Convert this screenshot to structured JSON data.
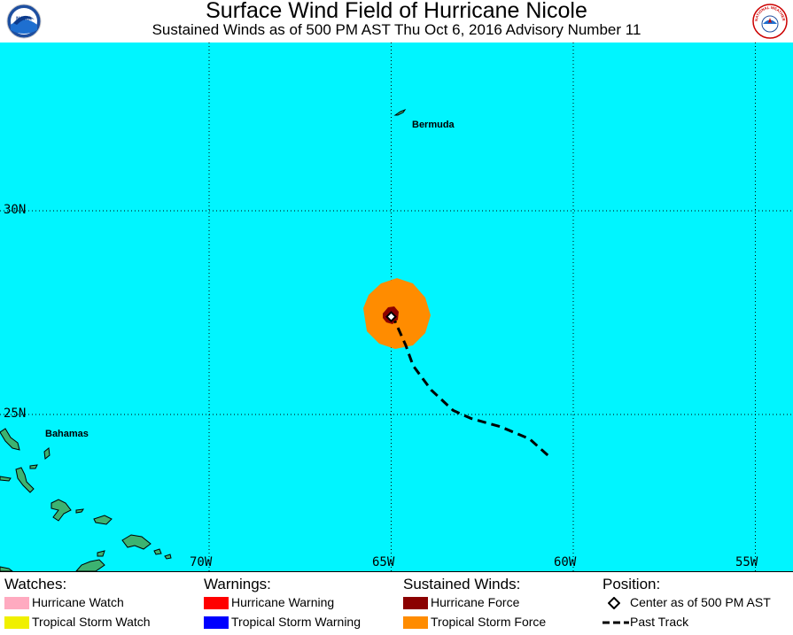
{
  "header": {
    "title": "Surface Wind Field of Hurricane Nicole",
    "subtitle": "Sustained Winds as of 500 PM AST Thu Oct 6, 2016   Advisory Number 11",
    "noaa_logo_text": "NOAA",
    "nws_logo_text": "NATIONAL WEATHER SERVICE"
  },
  "map": {
    "places": {
      "bermuda": "Bermuda",
      "bahamas": "Bahamas"
    },
    "latitude_labels": [
      "30N",
      "25N"
    ],
    "longitude_labels": [
      "70W",
      "65W",
      "60W",
      "55W"
    ],
    "gridlines": true,
    "colors": {
      "ocean": "#00f5ff",
      "land": "#3cb371",
      "tropical_storm_force": "#ff8c00",
      "hurricane_force": "#8b0000"
    }
  },
  "storm": {
    "center": {
      "lon": -65.0,
      "lat": 27.4
    },
    "past_track": [
      {
        "lon": -60.7,
        "lat": 24.0
      },
      {
        "lon": -61.2,
        "lat": 24.4
      },
      {
        "lon": -62.0,
        "lat": 24.7
      },
      {
        "lon": -62.8,
        "lat": 24.9
      },
      {
        "lon": -63.3,
        "lat": 25.1
      },
      {
        "lon": -63.9,
        "lat": 25.6
      },
      {
        "lon": -64.4,
        "lat": 26.2
      },
      {
        "lon": -64.6,
        "lat": 26.7
      },
      {
        "lon": -64.9,
        "lat": 27.3
      }
    ]
  },
  "legend": {
    "watches": {
      "heading": "Watches:",
      "items": [
        {
          "label": "Hurricane Watch",
          "color": "#ffaac0"
        },
        {
          "label": "Tropical Storm Watch",
          "color": "#f0f000"
        }
      ]
    },
    "warnings": {
      "heading": "Warnings:",
      "items": [
        {
          "label": "Hurricane Warning",
          "color": "#ff0000"
        },
        {
          "label": "Tropical Storm Warning",
          "color": "#0000ff"
        }
      ]
    },
    "winds": {
      "heading": "Sustained Winds:",
      "items": [
        {
          "label": "Hurricane Force",
          "color": "#8b0000"
        },
        {
          "label": "Tropical Storm Force",
          "color": "#ff8c00"
        }
      ]
    },
    "position": {
      "heading": "Position:",
      "items": [
        {
          "label": "Center as of 500 PM AST",
          "icon": "diamond-icon"
        },
        {
          "label": "Past Track",
          "icon": "dashed-line-icon"
        }
      ]
    }
  }
}
